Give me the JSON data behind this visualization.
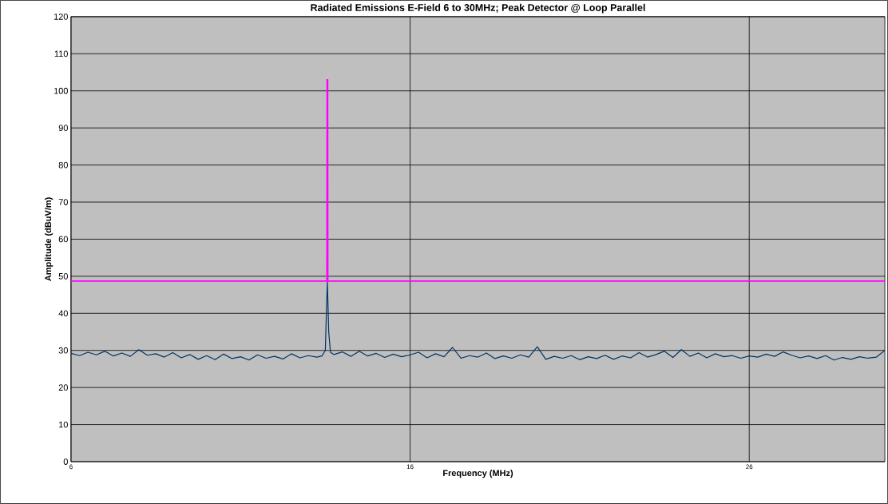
{
  "chart_data": {
    "type": "line",
    "title": "Radiated Emissions E-Field 6 to 30MHz; Peak Detector @ Loop Parallel",
    "xlabel": "Frequency (MHz)",
    "ylabel": "Amplitude (dBuV/m)",
    "xlim": [
      6,
      30
    ],
    "ylim": [
      0,
      120
    ],
    "xticks": [
      6,
      16,
      26
    ],
    "yticks": [
      0,
      10,
      20,
      30,
      40,
      50,
      60,
      70,
      80,
      90,
      100,
      110,
      120
    ],
    "grid": true,
    "marker": "none",
    "line_style": "solid",
    "series": [
      {
        "color": "#003366",
        "x": [
          6,
          6.25,
          6.5,
          6.75,
          7,
          7.25,
          7.5,
          7.75,
          8,
          8.25,
          8.5,
          8.75,
          9,
          9.25,
          9.5,
          9.75,
          10,
          10.25,
          10.5,
          10.75,
          11,
          11.25,
          11.5,
          11.75,
          12,
          12.25,
          12.5,
          12.75,
          13,
          13.25,
          13.4,
          13.5,
          13.53,
          13.56,
          13.6,
          13.65,
          13.75,
          14,
          14.25,
          14.5,
          14.75,
          15,
          15.25,
          15.5,
          15.75,
          16,
          16.25,
          16.5,
          16.75,
          17,
          17.25,
          17.5,
          17.75,
          18,
          18.25,
          18.5,
          18.75,
          19,
          19.25,
          19.5,
          19.75,
          20,
          20.25,
          20.5,
          20.75,
          21,
          21.25,
          21.5,
          21.75,
          22,
          22.25,
          22.5,
          22.75,
          23,
          23.25,
          23.5,
          23.75,
          24,
          24.25,
          24.5,
          24.75,
          25,
          25.25,
          25.5,
          25.75,
          26,
          26.25,
          26.5,
          26.75,
          27,
          27.25,
          27.5,
          27.75,
          28,
          28.25,
          28.5,
          28.75,
          29,
          29.25,
          29.5,
          29.75,
          30
        ],
        "values": [
          29.2,
          28.6,
          29.5,
          28.8,
          29.8,
          28.5,
          29.3,
          28.4,
          30.2,
          28.7,
          29.1,
          28.2,
          29.4,
          28.0,
          28.9,
          27.6,
          28.6,
          27.5,
          29.0,
          27.8,
          28.3,
          27.4,
          28.8,
          27.9,
          28.4,
          27.7,
          29.1,
          28.0,
          28.6,
          28.2,
          28.5,
          30,
          40,
          48.5,
          35,
          29.5,
          28.9,
          29.6,
          28.4,
          29.8,
          28.5,
          29.2,
          28.1,
          29.0,
          28.3,
          28.8,
          29.5,
          28.0,
          29.1,
          28.3,
          30.8,
          27.9,
          28.6,
          28.2,
          29.3,
          27.8,
          28.5,
          27.9,
          28.8,
          28.2,
          31.0,
          27.6,
          28.4,
          27.9,
          28.6,
          27.5,
          28.3,
          27.8,
          28.7,
          27.6,
          28.5,
          28.0,
          29.4,
          28.2,
          28.9,
          29.8,
          28.1,
          30.2,
          28.4,
          29.3,
          28.0,
          29.1,
          28.3,
          28.6,
          27.9,
          28.5,
          28.2,
          29.0,
          28.4,
          29.6,
          28.7,
          28.0,
          28.5,
          27.8,
          28.6,
          27.4,
          28.1,
          27.6,
          28.3,
          27.9,
          28.2,
          30.0
        ]
      },
      {
        "color": "#ff00ff",
        "x": [
          6,
          13.545,
          13.55,
          13.57,
          13.575,
          30
        ],
        "values": [
          48.7,
          48.7,
          103,
          103,
          48.7,
          48.7
        ]
      }
    ]
  }
}
